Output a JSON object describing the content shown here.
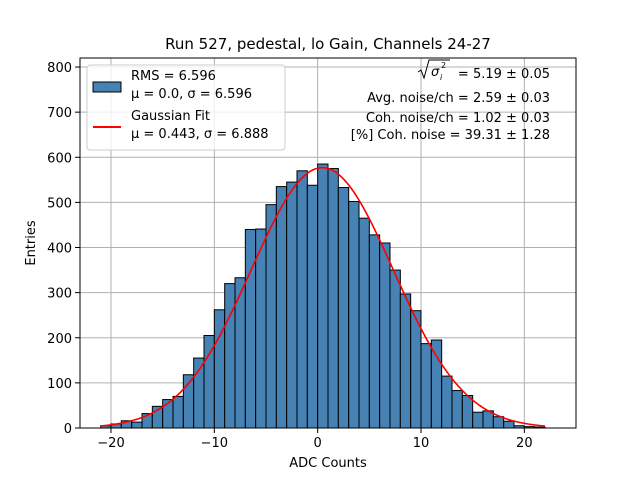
{
  "chart_data": {
    "type": "bar",
    "title": "Run 527, pedestal, lo Gain, Channels 24-27",
    "xlabel": "ADC Counts",
    "ylabel": "Entries",
    "xlim": [
      -23,
      25
    ],
    "ylim": [
      0,
      820
    ],
    "grid": true,
    "legend_placement": "top-left",
    "xticks": [
      -20,
      -10,
      0,
      10,
      20
    ],
    "xtick_labels": [
      "−20",
      "−10",
      "0",
      "10",
      "20"
    ],
    "yticks": [
      0,
      100,
      200,
      300,
      400,
      500,
      600,
      700,
      800
    ],
    "ytick_labels": [
      "0",
      "100",
      "200",
      "300",
      "400",
      "500",
      "600",
      "700",
      "800"
    ],
    "bin_edges_start": -21,
    "bin_width": 1,
    "values": [
      5,
      9,
      16,
      13,
      32,
      48,
      63,
      70,
      118,
      155,
      205,
      262,
      320,
      333,
      440,
      441,
      495,
      535,
      545,
      570,
      538,
      585,
      575,
      533,
      502,
      465,
      428,
      410,
      350,
      297,
      260,
      187,
      195,
      115,
      83,
      72,
      35,
      38,
      25,
      15,
      5,
      3,
      2
    ],
    "fit": {
      "amplitude": 577,
      "mu": 0.443,
      "sigma": 6.888,
      "x_range": [
        -21,
        22
      ]
    },
    "colors": {
      "bar_fill": "#4682b4",
      "bar_edge": "#000000",
      "fit_line": "#ff0000",
      "grid": "#b0b0b0"
    },
    "legend": [
      {
        "kind": "patch",
        "line1": "RMS = 6.596",
        "line2": "μ = 0.0, σ = 6.596"
      },
      {
        "kind": "line",
        "line1": "Gaussian Fit",
        "line2": "μ = 0.443, σ = 6.888"
      }
    ],
    "annotations": [
      "= 5.19 ± 0.05",
      "Avg. noise/ch = 2.59 ± 0.03",
      "Coh. noise/ch = 1.02 ± 0.03",
      "[%] Coh. noise = 39.31 ± 1.28"
    ],
    "sigma_symbol": "σ",
    "sigma_subscript": "i",
    "sigma_superscript": "2"
  }
}
